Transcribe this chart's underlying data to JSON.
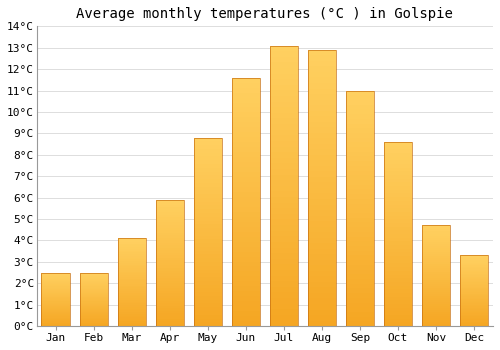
{
  "title": "Average monthly temperatures (°C ) in Golspie",
  "months": [
    "Jan",
    "Feb",
    "Mar",
    "Apr",
    "May",
    "Jun",
    "Jul",
    "Aug",
    "Sep",
    "Oct",
    "Nov",
    "Dec"
  ],
  "values": [
    2.5,
    2.5,
    4.1,
    5.9,
    8.8,
    11.6,
    13.1,
    12.9,
    11.0,
    8.6,
    4.7,
    3.3
  ],
  "bar_color_dark": "#F5A623",
  "bar_color_light": "#FFD060",
  "ylim": [
    0,
    14
  ],
  "yticks": [
    0,
    1,
    2,
    3,
    4,
    5,
    6,
    7,
    8,
    9,
    10,
    11,
    12,
    13,
    14
  ],
  "background_color": "#FFFFFF",
  "grid_color": "#DDDDDD",
  "title_fontsize": 10,
  "tick_fontsize": 8,
  "font_family": "monospace",
  "bar_width": 0.75
}
